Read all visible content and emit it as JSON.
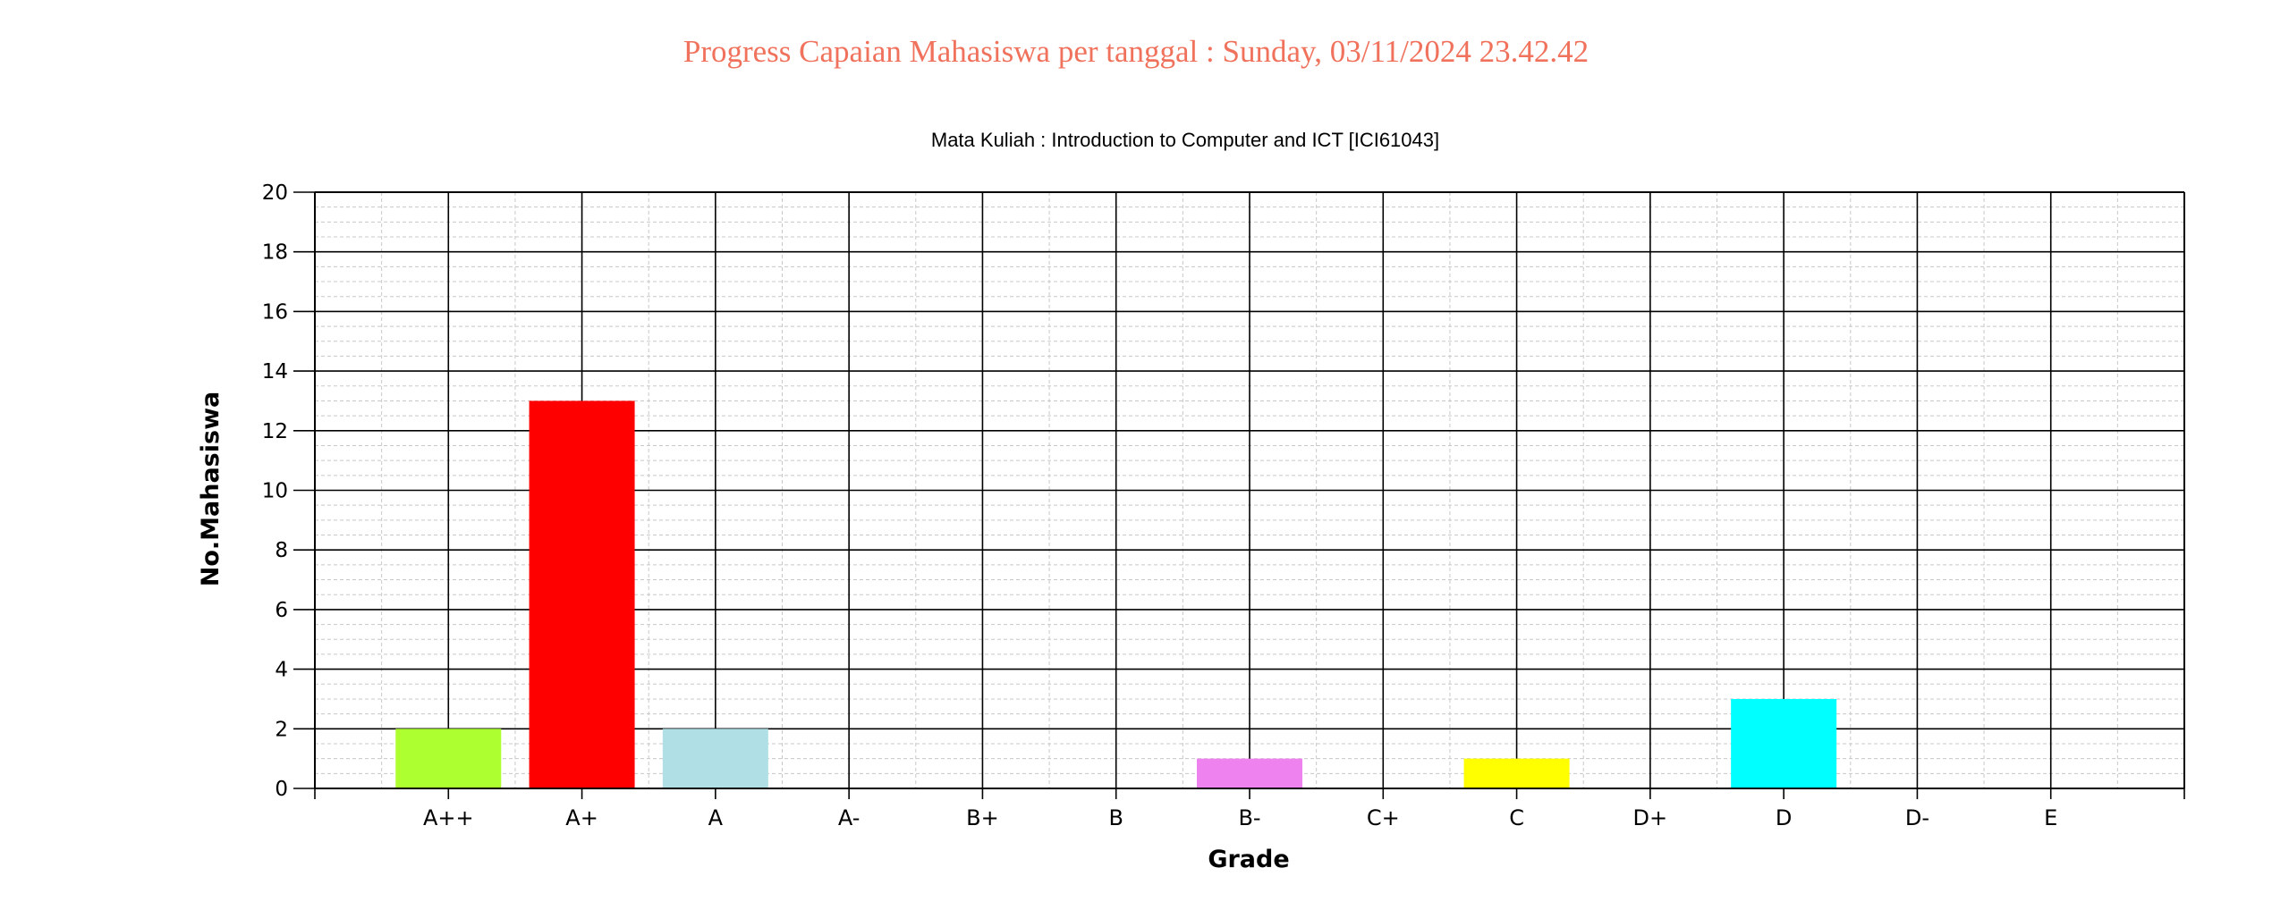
{
  "page": {
    "title": "Progress Capaian Mahasiswa per tanggal : Sunday, 03/11/2024 23.42.42"
  },
  "chart_data": {
    "type": "bar",
    "title": "Mata Kuliah : Introduction to Computer and ICT [ICI61043]",
    "xlabel": "Grade",
    "ylabel": "No.Mahasiswa",
    "categories": [
      "A++",
      "A+",
      "A",
      "A-",
      "B+",
      "B",
      "B-",
      "C+",
      "C",
      "D+",
      "D",
      "D-",
      "E"
    ],
    "values": [
      2,
      13,
      2,
      0,
      0,
      0,
      1,
      0,
      1,
      0,
      3,
      0,
      0
    ],
    "colors": [
      "#adff2f",
      "#ff0000",
      "#b0e0e6",
      "#000000",
      "#000000",
      "#000000",
      "#ee82ee",
      "#000000",
      "#ffff00",
      "#000000",
      "#00ffff",
      "#000000",
      "#000000"
    ],
    "ylim": [
      0,
      20
    ],
    "yticks": [
      0,
      2,
      4,
      6,
      8,
      10,
      12,
      14,
      16,
      18,
      20
    ],
    "grid": true,
    "legend": "none"
  }
}
